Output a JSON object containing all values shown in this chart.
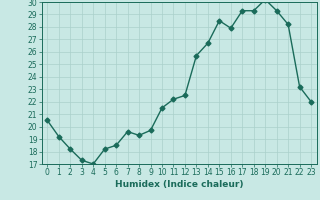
{
  "x": [
    0,
    1,
    2,
    3,
    4,
    5,
    6,
    7,
    8,
    9,
    10,
    11,
    12,
    13,
    14,
    15,
    16,
    17,
    18,
    19,
    20,
    21,
    22,
    23
  ],
  "y": [
    20.5,
    19.2,
    18.2,
    17.3,
    17.0,
    18.2,
    18.5,
    19.6,
    19.3,
    19.7,
    21.5,
    22.2,
    22.5,
    25.7,
    26.7,
    28.5,
    27.9,
    29.3,
    29.3,
    30.2,
    29.3,
    28.2,
    23.2,
    22.0
  ],
  "line_color": "#1a6b5a",
  "bg_color": "#c8e8e4",
  "grid_color": "#aad0cb",
  "xlabel": "Humidex (Indice chaleur)",
  "ylim": [
    17,
    30
  ],
  "xlim_min": -0.5,
  "xlim_max": 23.5,
  "yticks": [
    17,
    18,
    19,
    20,
    21,
    22,
    23,
    24,
    25,
    26,
    27,
    28,
    29,
    30
  ],
  "xticks": [
    0,
    1,
    2,
    3,
    4,
    5,
    6,
    7,
    8,
    9,
    10,
    11,
    12,
    13,
    14,
    15,
    16,
    17,
    18,
    19,
    20,
    21,
    22,
    23
  ],
  "marker": "D",
  "markersize": 2.5,
  "linewidth": 1.0,
  "tick_fontsize": 5.5,
  "label_fontsize": 6.5
}
